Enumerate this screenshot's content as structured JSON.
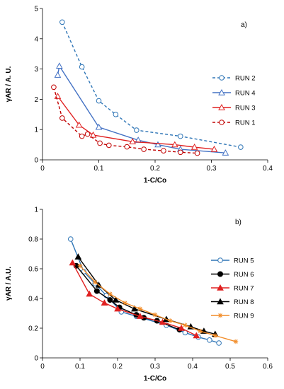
{
  "chart_data": [
    {
      "type": "line",
      "panel_label": "a)",
      "xlabel": "1-C/Co",
      "ylabel": "γAR / A. U.",
      "xlim": [
        0,
        0.4
      ],
      "ylim": [
        0,
        5
      ],
      "xticks": [
        "0",
        "0.1",
        "0.2",
        "0.3",
        "0.4"
      ],
      "yticks": [
        "0",
        "1",
        "2",
        "3",
        "4",
        "5"
      ],
      "grid": false,
      "legend_position": "right",
      "series": [
        {
          "name": "RUN 2",
          "color": "#2E75B6",
          "marker": "circle-open",
          "dash": "dashed",
          "x": [
            0.035,
            0.07,
            0.1,
            0.13,
            0.167,
            0.245,
            0.352
          ],
          "y": [
            4.55,
            3.07,
            1.95,
            1.5,
            0.98,
            0.78,
            0.42
          ]
        },
        {
          "name": "RUN 4",
          "color": "#4472C4",
          "marker": "triangle-open",
          "dash": "solid",
          "x": [
            0.027,
            0.03,
            0.1,
            0.17,
            0.205,
            0.245,
            0.325
          ],
          "y": [
            2.8,
            3.1,
            1.08,
            0.65,
            0.5,
            0.35,
            0.23
          ]
        },
        {
          "name": "RUN 3",
          "color": "#E02020",
          "marker": "triangle-open",
          "dash": "solid",
          "x": [
            0.027,
            0.065,
            0.09,
            0.16,
            0.235,
            0.27,
            0.305
          ],
          "y": [
            2.1,
            1.15,
            0.82,
            0.6,
            0.5,
            0.42,
            0.35
          ]
        },
        {
          "name": "RUN 1",
          "color": "#C00000",
          "marker": "circle-open",
          "dash": "dashed",
          "x": [
            0.02,
            0.035,
            0.07,
            0.08,
            0.102,
            0.118,
            0.15,
            0.18,
            0.215,
            0.245,
            0.275
          ],
          "y": [
            2.4,
            1.38,
            0.78,
            0.85,
            0.55,
            0.48,
            0.43,
            0.35,
            0.3,
            0.25,
            0.22
          ]
        }
      ]
    },
    {
      "type": "line",
      "panel_label": "b)",
      "xlabel": "1-C/Co",
      "ylabel": "γAR / A.U.",
      "xlim": [
        0,
        0.6
      ],
      "ylim": [
        0,
        1
      ],
      "xticks": [
        "0",
        "0.1",
        "0.2",
        "0.3",
        "0.4",
        "0.5",
        "0.6"
      ],
      "yticks": [
        "0",
        "0.2",
        "0.4",
        "0.6",
        "0.8",
        "1"
      ],
      "grid": false,
      "legend_position": "right",
      "series": [
        {
          "name": "RUN 5",
          "color": "#2E75B6",
          "marker": "circle-open",
          "x": [
            0.075,
            0.11,
            0.14,
            0.17,
            0.21,
            0.25,
            0.33,
            0.38,
            0.415,
            0.445,
            0.47
          ],
          "y": [
            0.8,
            0.58,
            0.5,
            0.42,
            0.31,
            0.28,
            0.22,
            0.17,
            0.14,
            0.12,
            0.1
          ]
        },
        {
          "name": "RUN 6",
          "color": "#000000",
          "marker": "circle-filled",
          "x": [
            0.09,
            0.145,
            0.18,
            0.205,
            0.25,
            0.27,
            0.305,
            0.365
          ],
          "y": [
            0.62,
            0.45,
            0.39,
            0.34,
            0.29,
            0.27,
            0.25,
            0.19
          ]
        },
        {
          "name": "RUN 7",
          "color": "#E02020",
          "marker": "triangle-filled",
          "x": [
            0.08,
            0.125,
            0.165,
            0.2,
            0.26,
            0.32,
            0.37,
            0.41
          ],
          "y": [
            0.64,
            0.43,
            0.37,
            0.33,
            0.28,
            0.24,
            0.2,
            0.15
          ]
        },
        {
          "name": "RUN 8",
          "color": "#000000",
          "marker": "triangle-filled",
          "x": [
            0.095,
            0.15,
            0.195,
            0.245,
            0.33,
            0.395,
            0.43,
            0.46
          ],
          "y": [
            0.68,
            0.49,
            0.39,
            0.33,
            0.26,
            0.21,
            0.18,
            0.16
          ]
        },
        {
          "name": "RUN 9",
          "color": "#F28C28",
          "marker": "star",
          "x": [
            0.1,
            0.14,
            0.18,
            0.22,
            0.26,
            0.3,
            0.34,
            0.38,
            0.42,
            0.46,
            0.515
          ],
          "y": [
            0.62,
            0.51,
            0.43,
            0.37,
            0.33,
            0.29,
            0.25,
            0.22,
            0.18,
            0.15,
            0.11
          ]
        }
      ]
    }
  ]
}
